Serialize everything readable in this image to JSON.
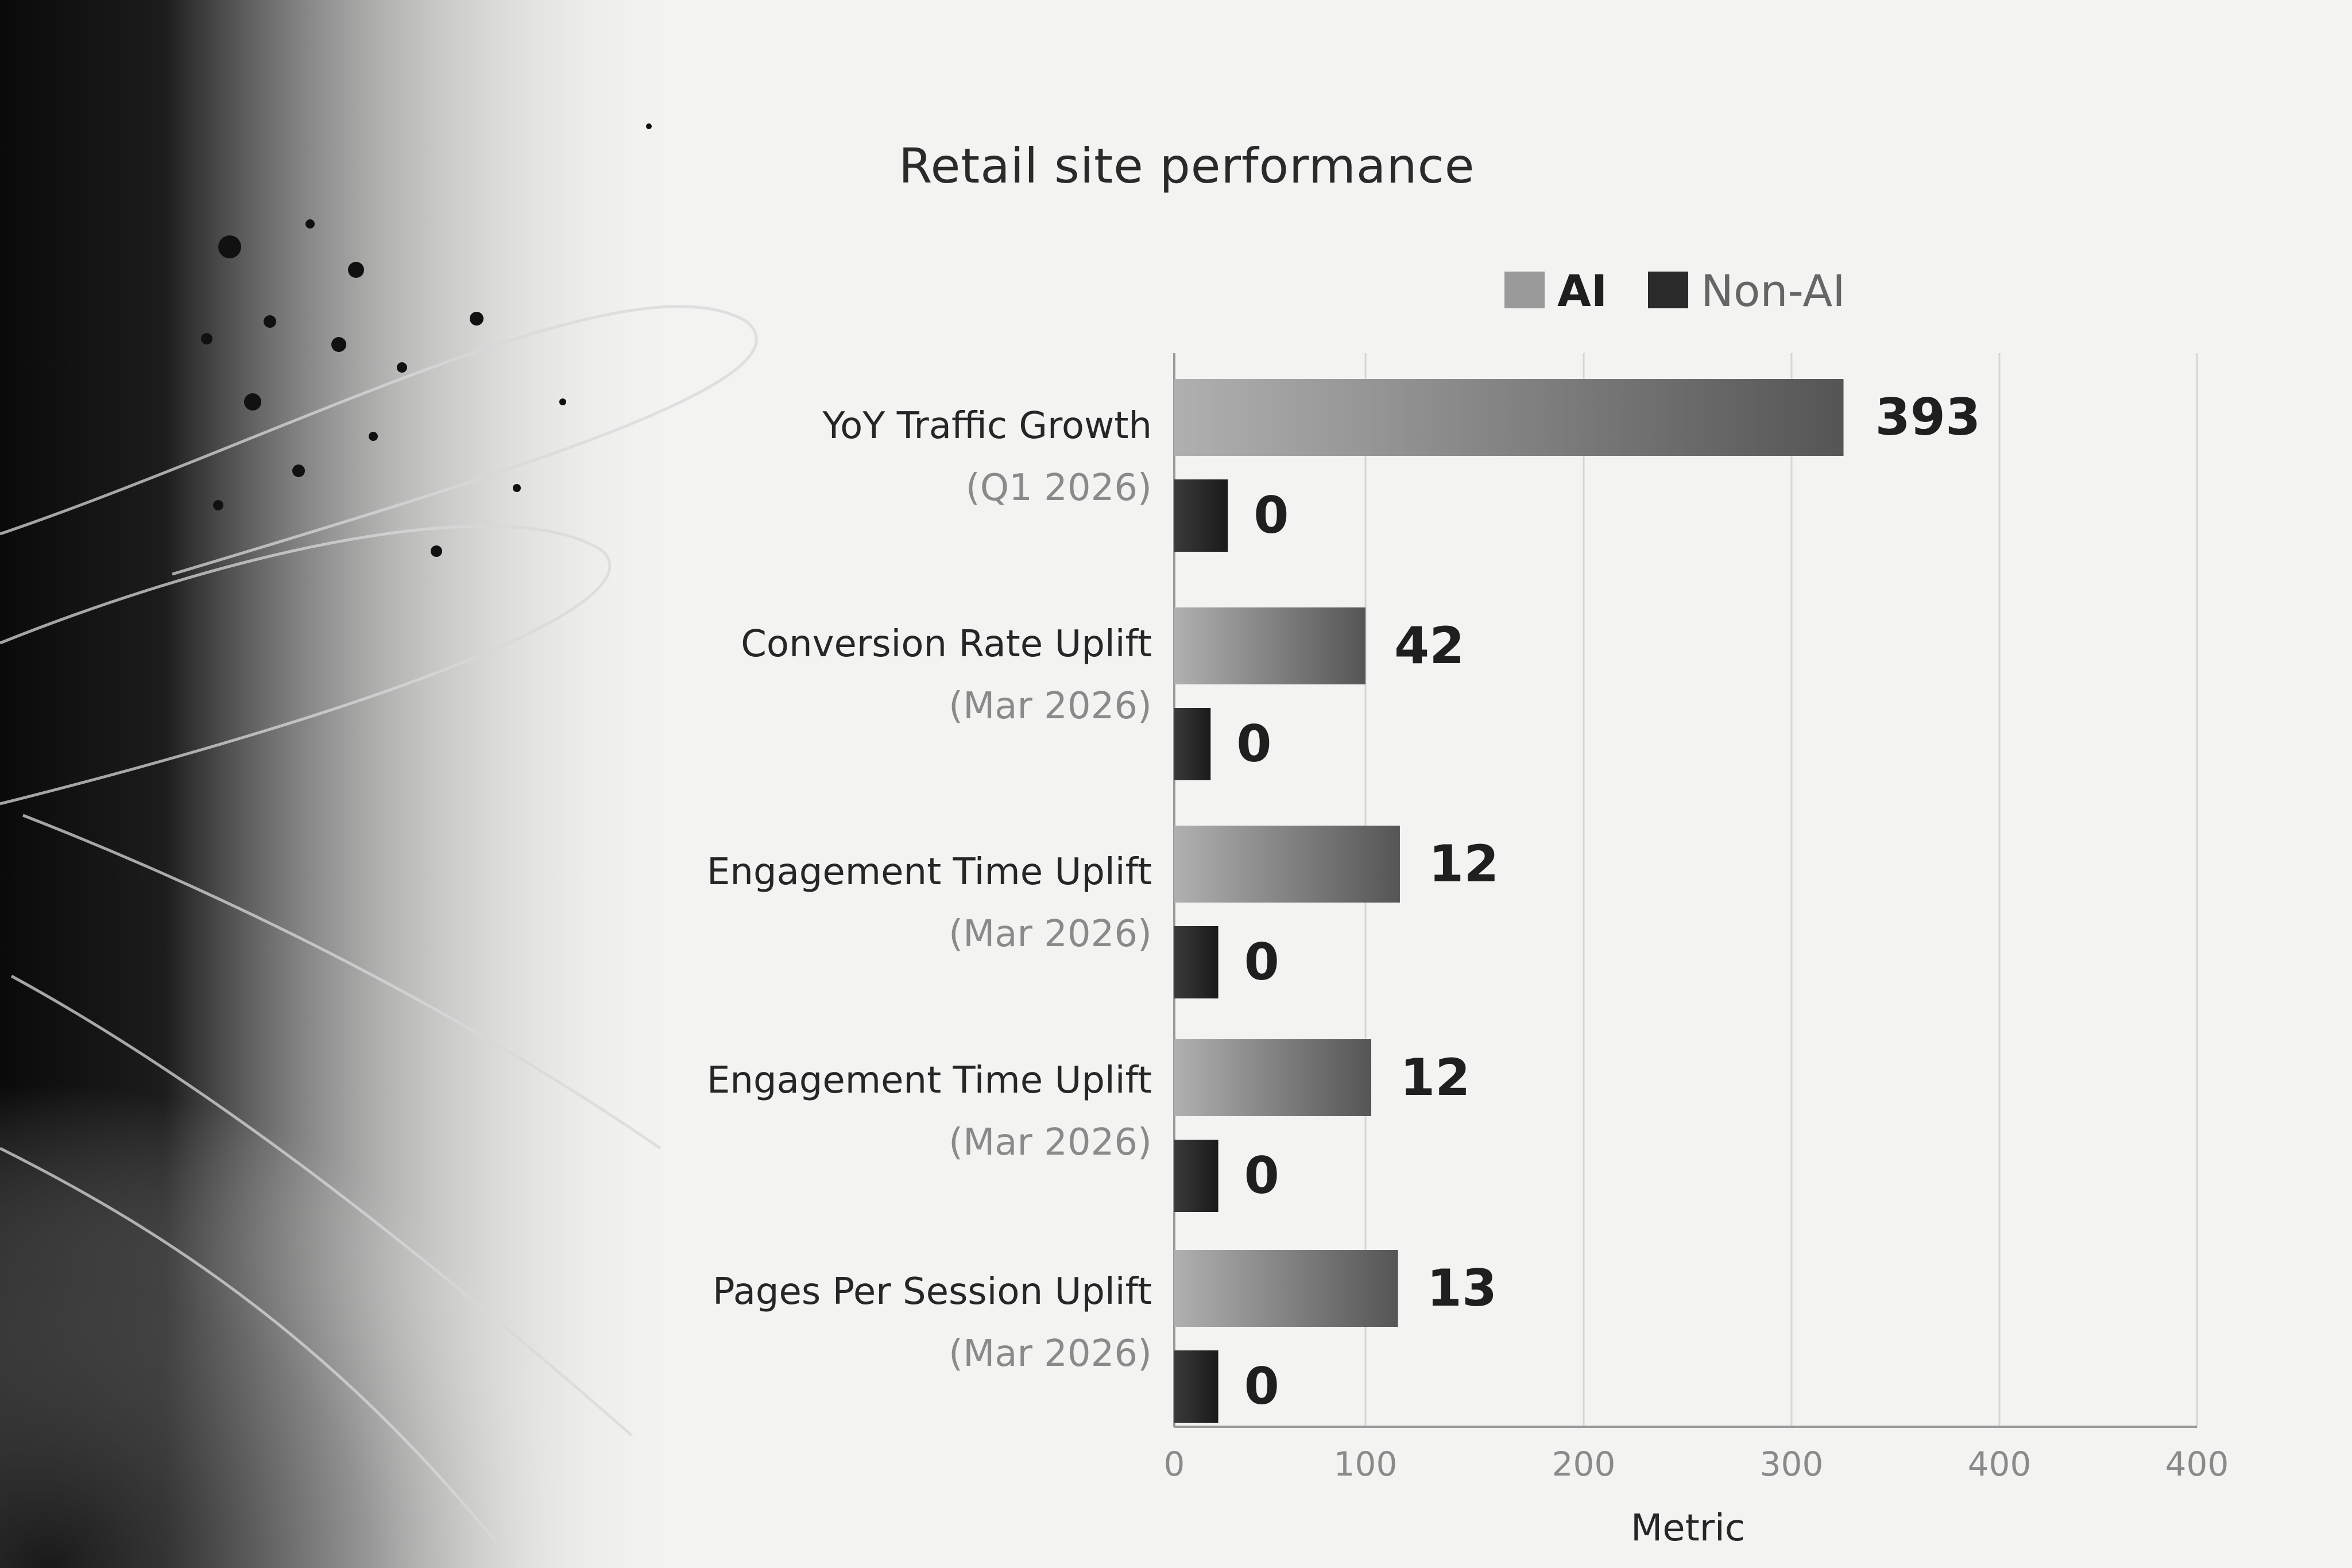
{
  "chart_data": {
    "type": "bar",
    "orientation": "horizontal",
    "title": "Retail site performance",
    "xlabel": "Metric",
    "ylabel": "",
    "xlim": [
      0,
      400
    ],
    "x_ticks": [
      "0",
      "100",
      "200",
      "300",
      "400",
      "400"
    ],
    "grid": true,
    "legend_position": "top-right",
    "categories": [
      {
        "name": "YoY Traffic Growth",
        "sub": "(Q1 2026)"
      },
      {
        "name": "Conversion Rate Uplift",
        "sub": "(Mar 2026)"
      },
      {
        "name": "Engagement Time Uplift",
        "sub": "(Mar 2026)"
      },
      {
        "name": "Engagement Time Uplift",
        "sub": "(Mar 2026)"
      },
      {
        "name": "Pages Per Session Uplift",
        "sub": "(Mar 2026)"
      }
    ],
    "series": [
      {
        "name": "AI",
        "color": "#9a9a9a",
        "values": [
          393,
          42,
          12,
          12,
          13
        ],
        "bar_extent": [
          350,
          100,
          118,
          103,
          117
        ]
      },
      {
        "name": "Non-AI",
        "color": "#2a2a2a",
        "values": [
          0,
          0,
          0,
          0,
          0
        ],
        "bar_extent": [
          28,
          19,
          23,
          23,
          23
        ]
      }
    ]
  }
}
